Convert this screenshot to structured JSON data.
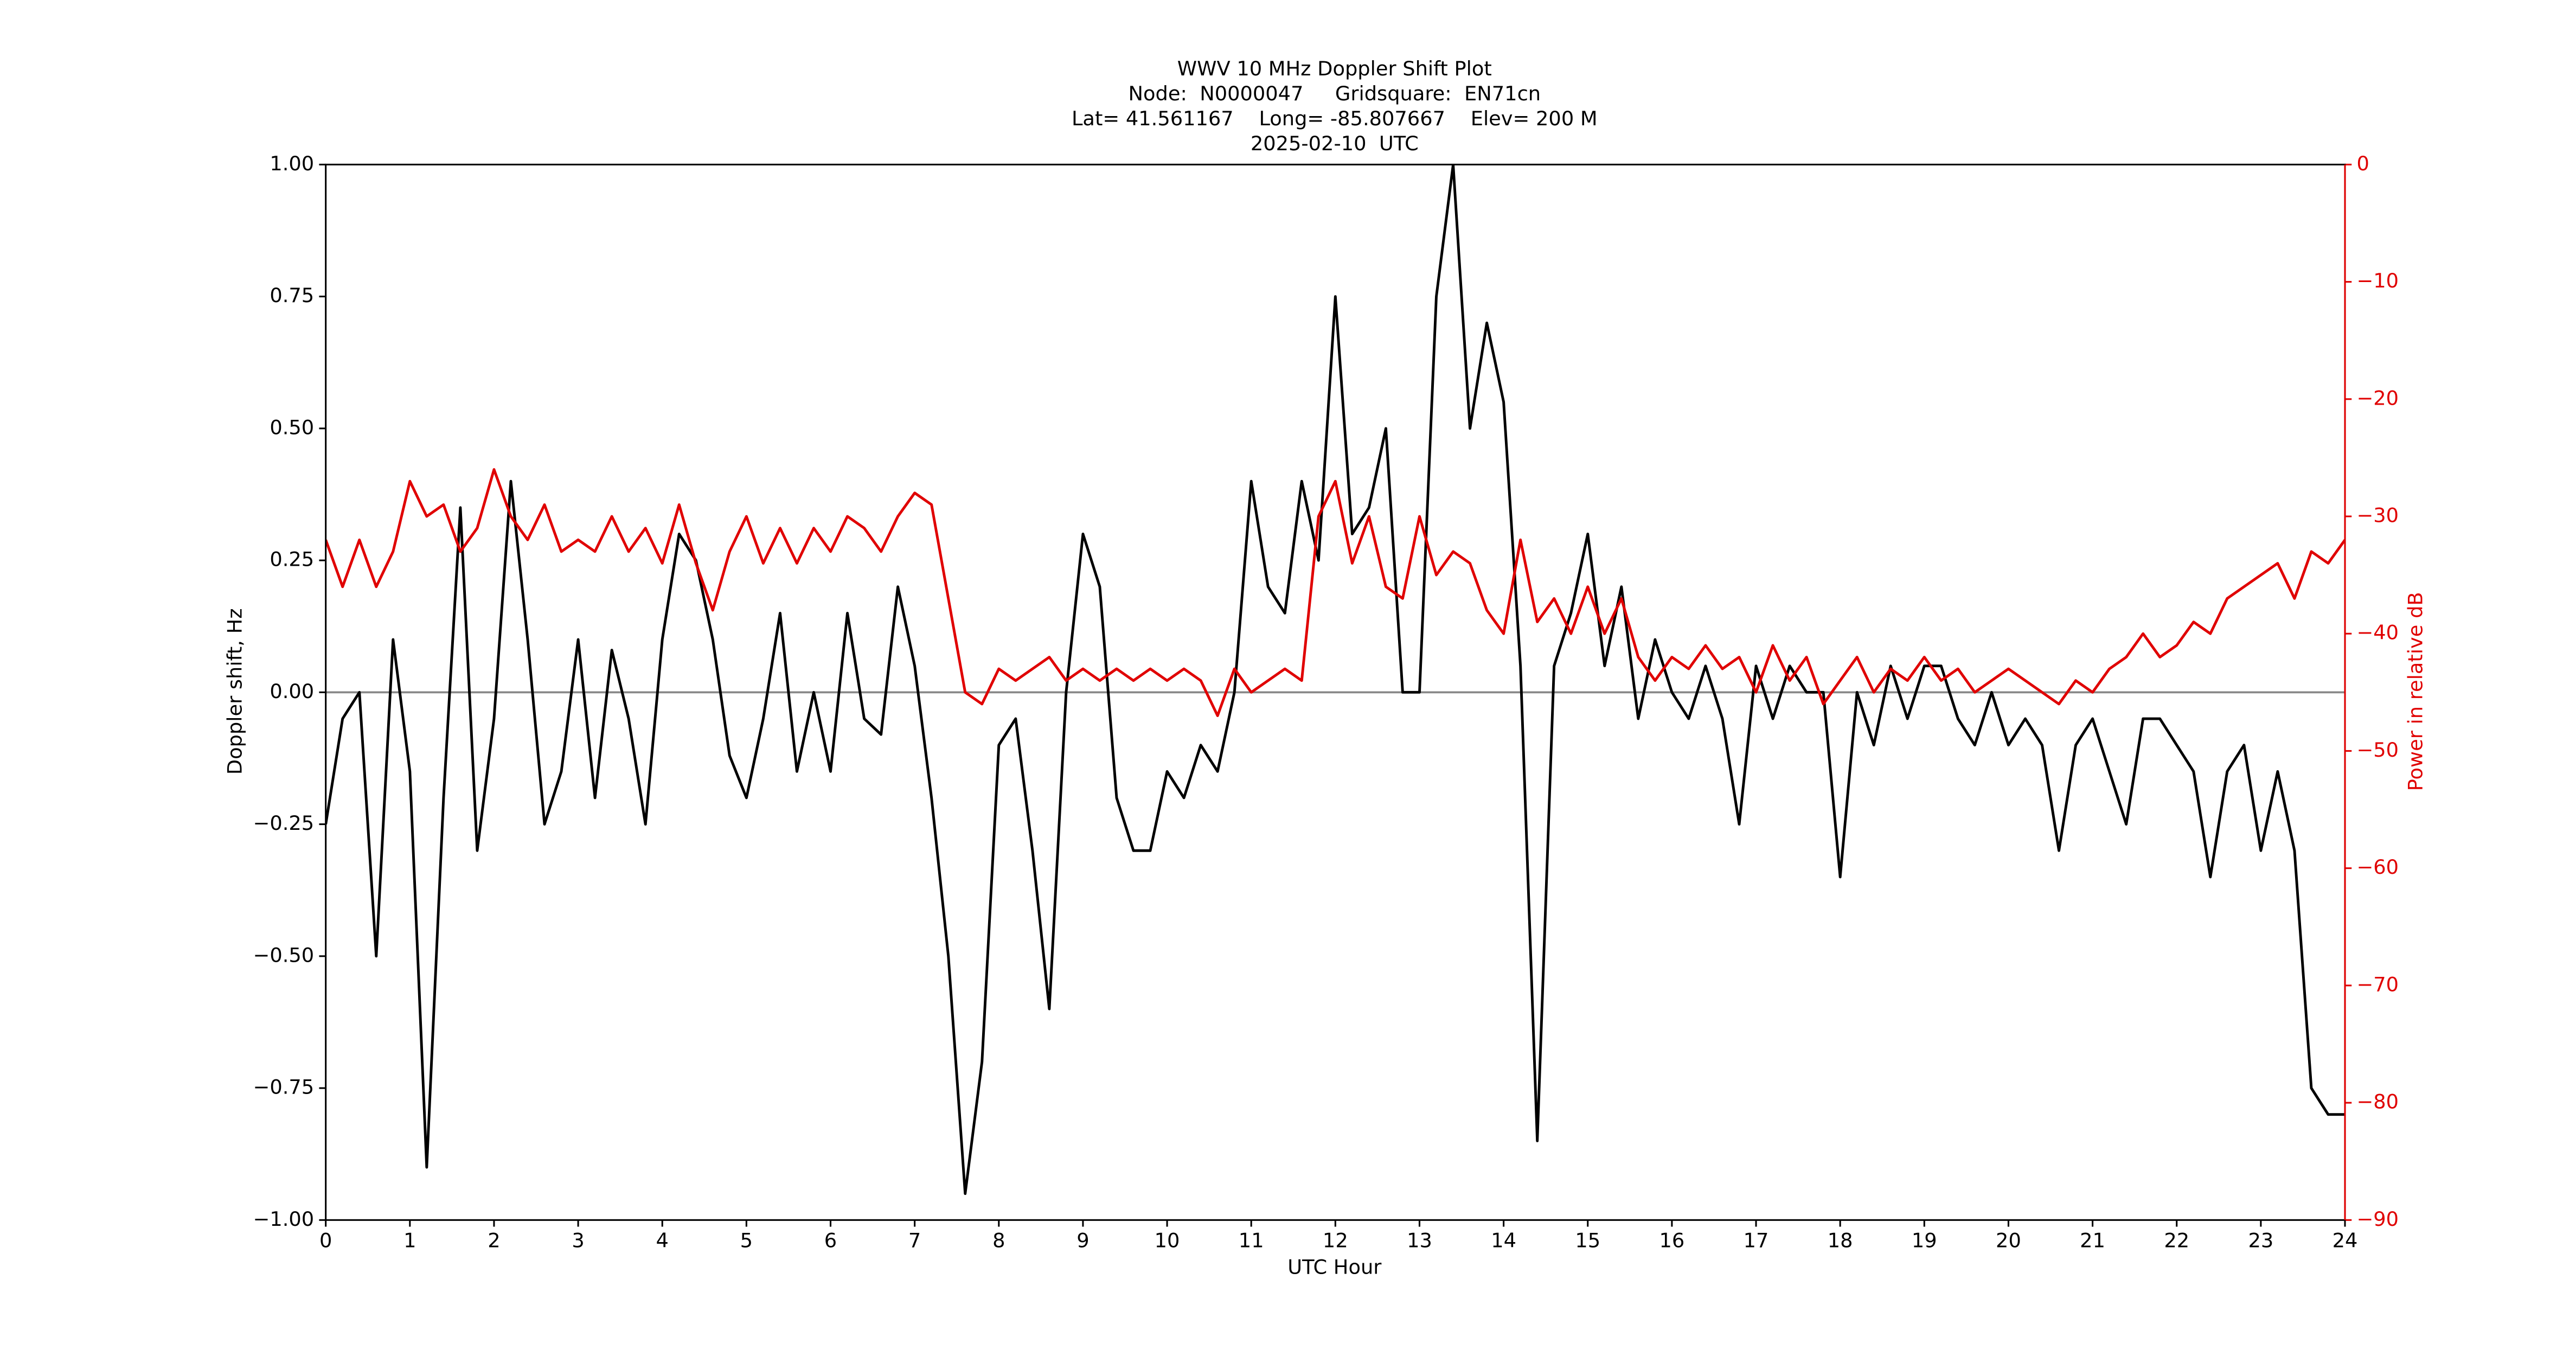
{
  "chart_data": {
    "type": "line",
    "title": [
      "WWV 10 MHz Doppler Shift Plot",
      "Node:  N0000047     Gridsquare:  EN71cn",
      "Lat= 41.561167    Long= -85.807667    Elev= 200 M",
      "2025-02-10  UTC"
    ],
    "xlabel": "UTC Hour",
    "ylabel": "Doppler shift, Hz",
    "y2label": "Power in relative dB",
    "xlim": [
      0,
      24
    ],
    "xticks": [
      0,
      1,
      2,
      3,
      4,
      5,
      6,
      7,
      8,
      9,
      10,
      11,
      12,
      13,
      14,
      15,
      16,
      17,
      18,
      19,
      20,
      21,
      22,
      23,
      24
    ],
    "ylim": [
      -1,
      1
    ],
    "yticks": [
      {
        "value": -1,
        "label": "−1.00"
      },
      {
        "value": -0.75,
        "label": "−0.75"
      },
      {
        "value": -0.5,
        "label": "−0.50"
      },
      {
        "value": -0.25,
        "label": "−0.25"
      },
      {
        "value": 0,
        "label": "0.00"
      },
      {
        "value": 0.25,
        "label": "0.25"
      },
      {
        "value": 0.5,
        "label": "0.50"
      },
      {
        "value": 0.75,
        "label": "0.75"
      },
      {
        "value": 1,
        "label": "1.00"
      }
    ],
    "y2lim": [
      -90,
      0
    ],
    "y2ticks": [
      {
        "value": -90,
        "label": "−90"
      },
      {
        "value": -80,
        "label": "−80"
      },
      {
        "value": -70,
        "label": "−70"
      },
      {
        "value": -60,
        "label": "−60"
      },
      {
        "value": -50,
        "label": "−50"
      },
      {
        "value": -40,
        "label": "−40"
      },
      {
        "value": -30,
        "label": "−30"
      },
      {
        "value": -20,
        "label": "−20"
      },
      {
        "value": -10,
        "label": "−10"
      },
      0
    ],
    "y2color": "#e00000",
    "hlines": [
      0
    ],
    "hline_color": "#888888",
    "x": [
      0,
      0.2,
      0.4,
      0.6,
      0.8,
      1,
      1.2,
      1.4,
      1.6,
      1.8,
      2,
      2.2,
      2.4,
      2.6,
      2.8,
      3,
      3.2,
      3.4,
      3.6,
      3.8,
      4,
      4.2,
      4.4,
      4.6,
      4.8,
      5,
      5.2,
      5.4,
      5.6,
      5.8,
      6,
      6.2,
      6.4,
      6.6,
      6.8,
      7,
      7.2,
      7.4,
      7.6,
      7.8,
      8,
      8.2,
      8.4,
      8.6,
      8.8,
      9,
      9.2,
      9.4,
      9.6,
      9.8,
      10,
      10.2,
      10.4,
      10.6,
      10.8,
      11,
      11.2,
      11.4,
      11.6,
      11.8,
      12,
      12.2,
      12.4,
      12.6,
      12.8,
      13,
      13.2,
      13.4,
      13.6,
      13.8,
      14,
      14.2,
      14.4,
      14.6,
      14.8,
      15,
      15.2,
      15.4,
      15.6,
      15.8,
      16,
      16.2,
      16.4,
      16.6,
      16.8,
      17,
      17.2,
      17.4,
      17.6,
      17.8,
      18,
      18.2,
      18.4,
      18.6,
      18.8,
      19,
      19.2,
      19.4,
      19.6,
      19.8,
      20,
      20.2,
      20.4,
      20.6,
      20.8,
      21,
      21.2,
      21.4,
      21.6,
      21.8,
      22,
      22.2,
      22.4,
      22.6,
      22.8,
      23,
      23.2,
      23.4,
      23.6,
      23.8,
      24
    ],
    "series": [
      {
        "color": "#000000",
        "values": [
          -0.25,
          -0.05,
          0,
          -0.5,
          0.1,
          -0.15,
          -0.9,
          -0.2,
          0.35,
          -0.3,
          -0.05,
          0.4,
          0.1,
          -0.25,
          -0.15,
          0.1,
          -0.2,
          0.08,
          -0.05,
          -0.25,
          0.1,
          0.3,
          0.25,
          0.1,
          -0.12,
          -0.2,
          -0.05,
          0.15,
          -0.15,
          0,
          -0.15,
          0.15,
          -0.05,
          -0.08,
          0.2,
          0.05,
          -0.2,
          -0.5,
          -0.95,
          -0.7,
          -0.1,
          -0.05,
          -0.3,
          -0.6,
          0,
          0.3,
          0.2,
          -0.2,
          -0.3,
          -0.3,
          -0.15,
          -0.2,
          -0.1,
          -0.15,
          0,
          0.4,
          0.2,
          0.15,
          0.4,
          0.25,
          0.75,
          0.3,
          0.35,
          0.5,
          0,
          0,
          0.75,
          1,
          0.5,
          0.7,
          0.55,
          0.05,
          -0.85,
          0.05,
          0.15,
          0.3,
          0.05,
          0.2,
          -0.05,
          0.1,
          0,
          -0.05,
          0.05,
          -0.05,
          -0.25,
          0.05,
          -0.05,
          0.05,
          0,
          0,
          -0.35,
          0,
          -0.1,
          0.05,
          -0.05,
          0.05,
          0.05,
          -0.05,
          -0.1,
          0,
          -0.1,
          -0.05,
          -0.1,
          -0.3,
          -0.1,
          -0.05,
          -0.15,
          -0.25,
          -0.05,
          -0.05,
          -0.1,
          -0.15,
          -0.35,
          -0.15,
          -0.1,
          -0.3,
          -0.15,
          -0.3,
          -0.75,
          -0.8,
          -0.8
        ]
      },
      {
        "color": "#e00000",
        "axis": "y2",
        "values": [
          -32,
          -36,
          -32,
          -36,
          -33,
          -27,
          -30,
          -29,
          -33,
          -31,
          -26,
          -30,
          -32,
          -29,
          -33,
          -32,
          -33,
          -30,
          -33,
          -31,
          -34,
          -29,
          -34,
          -38,
          -33,
          -30,
          -34,
          -31,
          -34,
          -31,
          -33,
          -30,
          -31,
          -33,
          -30,
          -28,
          -29,
          -37,
          -45,
          -46,
          -43,
          -44,
          -43,
          -42,
          -44,
          -43,
          -44,
          -43,
          -44,
          -43,
          -44,
          -43,
          -44,
          -47,
          -43,
          -45,
          -44,
          -43,
          -44,
          -30,
          -27,
          -34,
          -30,
          -36,
          -37,
          -30,
          -35,
          -33,
          -34,
          -38,
          -40,
          -32,
          -39,
          -37,
          -40,
          -36,
          -40,
          -37,
          -42,
          -44,
          -42,
          -43,
          -41,
          -43,
          -42,
          -45,
          -41,
          -44,
          -42,
          -46,
          -44,
          -42,
          -45,
          -43,
          -44,
          -42,
          -44,
          -43,
          -45,
          -44,
          -43,
          -44,
          -45,
          -46,
          -44,
          -45,
          -43,
          -42,
          -40,
          -42,
          -41,
          -39,
          -40,
          -37,
          -36,
          -35,
          -34,
          -37,
          -33,
          -34,
          -32
        ]
      }
    ]
  }
}
